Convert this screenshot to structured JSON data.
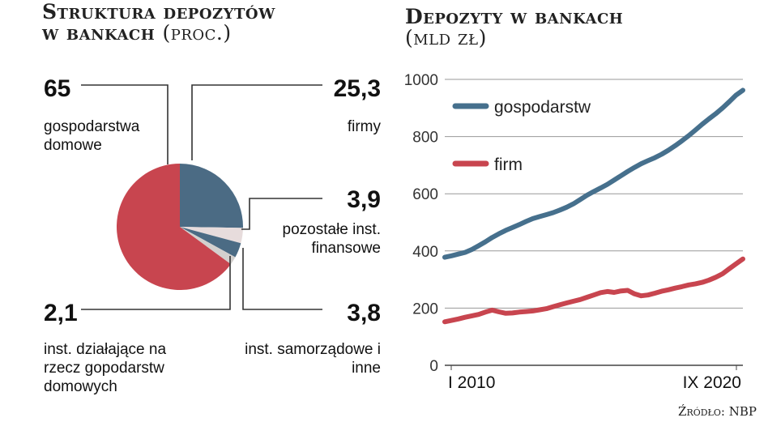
{
  "left_title": "Struktura depozytów",
  "left_title_line2": "w bankach",
  "left_unit": "(proc.)",
  "right_title": "Depozyty w bankach",
  "right_unit": "(mld zł)",
  "source": "Źródło: NBP",
  "colors": {
    "households": "#46708d",
    "firms": "#c8454f",
    "pie_main": "#c8454f",
    "pie_blue": "#4b6b84",
    "pie_light": "#e7dcdc",
    "pie_grey": "#d3d0ce",
    "pie_small_blue": "#4b6b84"
  },
  "chart_data": [
    {
      "type": "pie",
      "title": "Struktura depozytów w bankach (proc.)",
      "slices": [
        {
          "value": "65",
          "label": "gospodarstwa domowe",
          "value_num": 65
        },
        {
          "value": "25,3",
          "label": "firmy",
          "value_num": 25.3
        },
        {
          "value": "3,9",
          "label": "pozostałe inst. finansowe",
          "value_num": 3.9
        },
        {
          "value": "3,8",
          "label": "inst. samorządowe i inne",
          "value_num": 3.8
        },
        {
          "value": "2,1",
          "label": "inst. działające na rzecz gopodarstw domowych",
          "value_num": 2.1
        }
      ]
    },
    {
      "type": "line",
      "title": "Depozyty w bankach (mld zł)",
      "ylim": [
        0,
        1000
      ],
      "yticks": [
        "0",
        "200",
        "400",
        "600",
        "800",
        "1000"
      ],
      "xticks": [
        "I 2010",
        "IX 2020"
      ],
      "x_start": "2010-01",
      "x_end": "2020-09",
      "series": [
        {
          "name": "gospodarstw",
          "values": [
            378,
            383,
            389,
            395,
            405,
            418,
            432,
            447,
            460,
            472,
            482,
            492,
            503,
            513,
            520,
            527,
            534,
            543,
            553,
            565,
            580,
            595,
            608,
            620,
            633,
            648,
            663,
            678,
            692,
            705,
            716,
            726,
            738,
            752,
            768,
            785,
            803,
            823,
            843,
            862,
            880,
            900,
            922,
            945,
            962
          ]
        },
        {
          "name": "firm",
          "values": [
            152,
            157,
            162,
            168,
            173,
            178,
            186,
            193,
            187,
            182,
            183,
            186,
            188,
            190,
            194,
            198,
            205,
            212,
            218,
            224,
            230,
            238,
            246,
            254,
            258,
            255,
            260,
            262,
            250,
            243,
            246,
            252,
            259,
            264,
            270,
            275,
            281,
            285,
            290,
            298,
            308,
            320,
            338,
            355,
            372
          ]
        }
      ]
    }
  ]
}
